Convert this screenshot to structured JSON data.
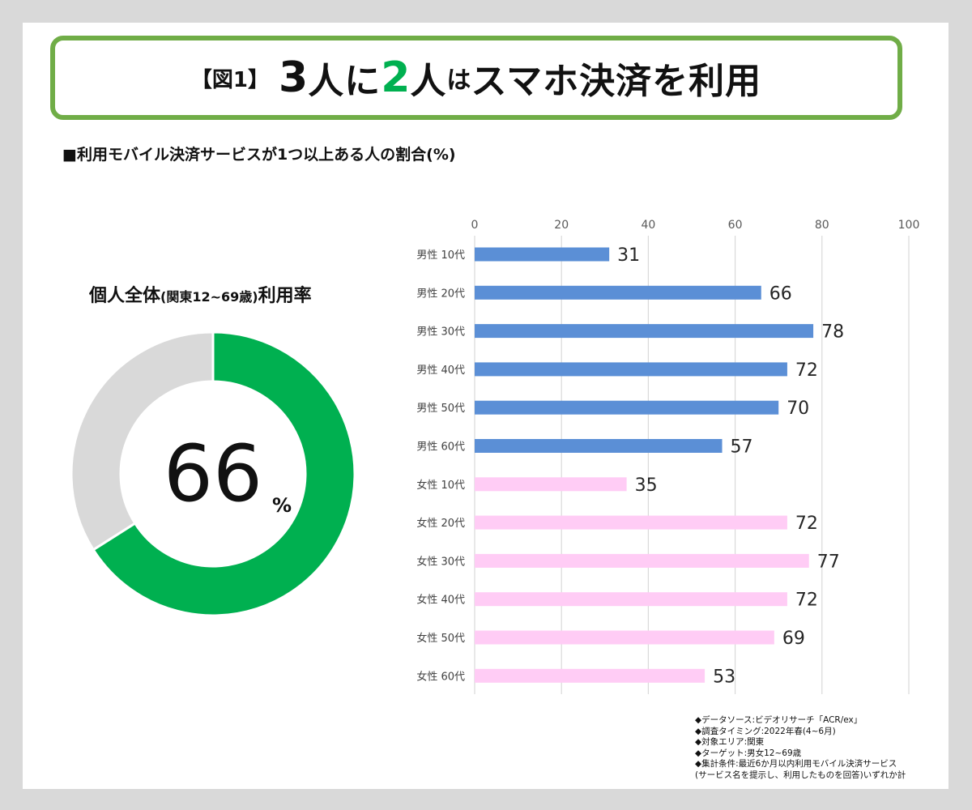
{
  "header": {
    "bracket": "【図1】",
    "part1": "3",
    "part2": "人に",
    "part3": "2",
    "part4": "人",
    "part5": "は",
    "part6": "スマホ決済を利用"
  },
  "subtitle": "■利用モバイル決済サービスが1つ以上ある人の割合(%)",
  "donut": {
    "title_main": "個人全体",
    "title_paren": "(関東12~69歳)",
    "title_tail": "利用率",
    "value": "66",
    "unit": "%"
  },
  "colors": {
    "accent_green": "#00b050",
    "frame_green": "#70ad47",
    "male_bar": "#5b8fd6",
    "female_bar": "#ffccf5",
    "donut_rest": "#d9d9d9",
    "grid": "#d9d9d9"
  },
  "chart_data": [
    {
      "type": "pie",
      "title": "個人全体(関東12~69歳)利用率",
      "values": [
        66,
        34
      ],
      "label": "66%"
    },
    {
      "type": "bar",
      "orientation": "horizontal",
      "title": "利用モバイル決済サービスが1つ以上ある人の割合(%)",
      "categories": [
        "男性 10代",
        "男性 20代",
        "男性 30代",
        "男性 40代",
        "男性 50代",
        "男性 60代",
        "女性 10代",
        "女性 20代",
        "女性 30代",
        "女性 40代",
        "女性 50代",
        "女性 60代"
      ],
      "values": [
        31,
        66,
        78,
        72,
        70,
        57,
        35,
        72,
        77,
        72,
        69,
        53
      ],
      "groups": [
        "male",
        "male",
        "male",
        "male",
        "male",
        "male",
        "female",
        "female",
        "female",
        "female",
        "female",
        "female"
      ],
      "xlim": [
        0,
        100
      ],
      "xticks": [
        0,
        20,
        40,
        60,
        80,
        100
      ],
      "xticks_position": "top",
      "grid": true,
      "data_labels": true
    }
  ],
  "notes": [
    "◆データソース:ビデオリサーチ「ACR/ex」",
    "◆調査タイミング:2022年春(4~6月)",
    "◆対象エリア:関東",
    "◆ターゲット:男女12~69歳",
    "◆集計条件:最近6か月以内利用モバイル決済サービス",
    "(サービス名を提示し、利用したものを回答)いずれか計"
  ]
}
